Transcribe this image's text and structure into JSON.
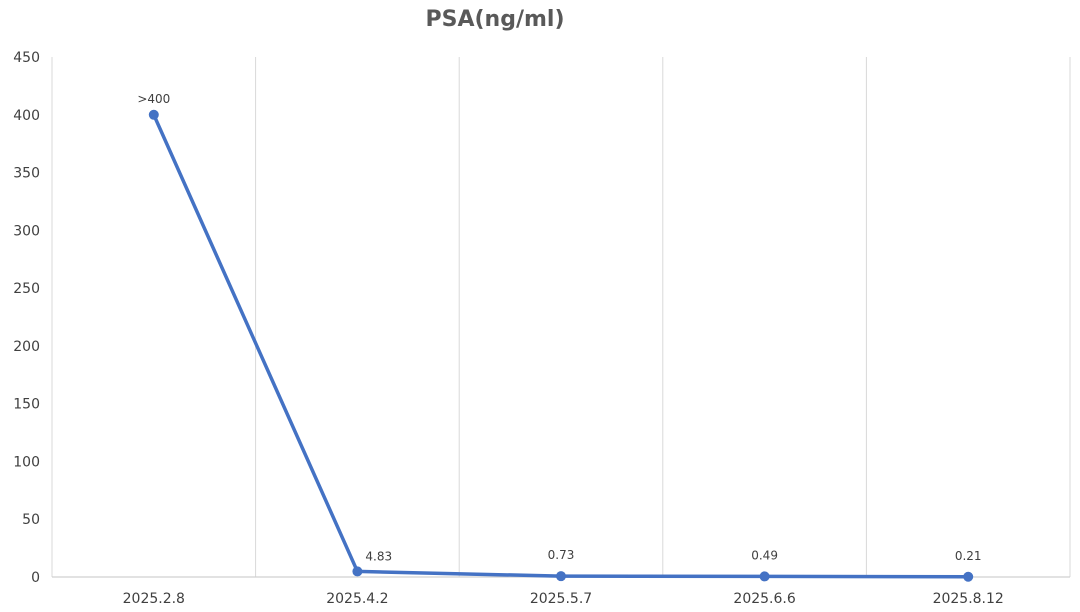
{
  "chart_data": {
    "type": "line",
    "title": "PSA(ng/ml)",
    "xlabel": "",
    "ylabel": "",
    "categories": [
      "2025.2.8",
      "2025.4.2",
      "2025.5.7",
      "2025.6.6",
      "2025.8.12"
    ],
    "series": [
      {
        "values": [
          400,
          4.83,
          0.73,
          0.49,
          0.21
        ],
        "data_labels": [
          ">400",
          "4.83",
          "0.73",
          "0.49",
          "0.21"
        ],
        "color": "#4472c4"
      }
    ],
    "ylim": [
      0,
      450
    ],
    "yticks": [
      "0",
      "50",
      "100",
      "150",
      "200",
      "250",
      "300",
      "350",
      "400",
      "450"
    ],
    "grid": "vertical",
    "legend": "none"
  }
}
